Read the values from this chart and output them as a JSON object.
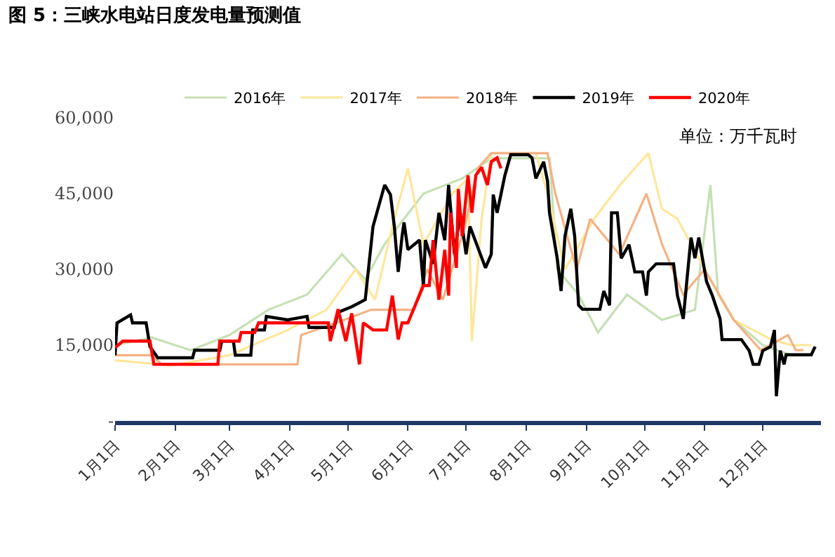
{
  "chart_data": {
    "type": "line",
    "title": "图 5：三峡水电站日度发电量预测值",
    "annotations": [
      "单位：万千瓦时"
    ],
    "xlim": [
      "--01-01",
      "--12-31"
    ],
    "xticks": [
      {
        "value": "--01-01",
        "label": "1月1日"
      },
      {
        "value": "--02-01",
        "label": "2月1日"
      },
      {
        "value": "--03-01",
        "label": "3月1日"
      },
      {
        "value": "--04-01",
        "label": "4月1日"
      },
      {
        "value": "--05-01",
        "label": "5月1日"
      },
      {
        "value": "--06-01",
        "label": "6月1日"
      },
      {
        "value": "--07-01",
        "label": "7月1日"
      },
      {
        "value": "--08-01",
        "label": "8月1日"
      },
      {
        "value": "--09-01",
        "label": "9月1日"
      },
      {
        "value": "--10-01",
        "label": "10月1日"
      },
      {
        "value": "--11-01",
        "label": "11月1日"
      },
      {
        "value": "--12-01",
        "label": "12月1日"
      }
    ],
    "ylim": [
      0,
      60000
    ],
    "yticks": [
      {
        "value": 0,
        "label": "-"
      },
      {
        "value": 15000,
        "label": "15,000"
      },
      {
        "value": 30000,
        "label": "30,000"
      },
      {
        "value": 45000,
        "label": "45,000"
      },
      {
        "value": 60000,
        "label": "60,000"
      }
    ],
    "legend": "top",
    "marker": "none",
    "line_style": "solid",
    "series": [
      {
        "name": "2016年",
        "color": "#c5e0b4",
        "x": [
          "--01-01",
          "--01-20",
          "--02-09",
          "--03-01",
          "--03-21",
          "--04-10",
          "--04-28",
          "--05-10",
          "--05-20",
          "--06-09",
          "--06-29",
          "--07-14",
          "--07-29",
          "--08-13",
          "--08-17",
          "--08-28",
          "--09-07",
          "--09-22",
          "--10-10",
          "--10-27",
          "--11-04",
          "--11-08",
          "--11-16",
          "--12-01",
          "--12-16",
          "--12-26"
        ],
        "values": [
          15000,
          16500,
          14000,
          17000,
          22000,
          25000,
          33000,
          28000,
          35000,
          45000,
          48000,
          52000,
          52000,
          52000,
          30000,
          25000,
          17500,
          25000,
          20000,
          22000,
          46700,
          25000,
          20000,
          15000,
          13000,
          13000
        ]
      },
      {
        "name": "2017年",
        "color": "#ffe699",
        "x": [
          "--01-01",
          "--01-30",
          "--03-01",
          "--03-31",
          "--04-20",
          "--05-05",
          "--05-15",
          "--05-25",
          "--06-01",
          "--06-09",
          "--06-24",
          "--07-02",
          "--07-04",
          "--07-09",
          "--07-14",
          "--08-06",
          "--08-12",
          "--08-21",
          "--09-05",
          "--09-19",
          "--10-03",
          "--10-10",
          "--10-18",
          "--11-01",
          "--11-16",
          "--12-06",
          "--12-16",
          "--12-26"
        ],
        "values": [
          12000,
          11000,
          13000,
          18000,
          22000,
          30000,
          24000,
          40000,
          50000,
          35000,
          45000,
          48000,
          15800,
          40000,
          53000,
          53000,
          45000,
          30000,
          40000,
          47000,
          53000,
          42000,
          40000,
          30000,
          20000,
          16000,
          15000,
          15000
        ]
      },
      {
        "name": "2018年",
        "color": "#f4b183",
        "x": [
          "--01-01",
          "--01-20",
          "--01-25",
          "--04-05",
          "--04-07",
          "--04-25",
          "--05-13",
          "--06-04",
          "--06-11",
          "--06-19",
          "--06-30",
          "--07-07",
          "--07-14",
          "--08-12",
          "--08-16",
          "--08-27",
          "--09-03",
          "--09-18",
          "--10-02",
          "--10-10",
          "--10-21",
          "--11-01",
          "--11-16",
          "--11-30",
          "--12-14",
          "--12-18",
          "--12-22"
        ],
        "values": [
          13000,
          13000,
          11200,
          11200,
          17000,
          19400,
          22000,
          22000,
          30000,
          24000,
          38000,
          50000,
          53000,
          53000,
          45000,
          30000,
          40000,
          33000,
          45000,
          35000,
          25000,
          30000,
          20000,
          14000,
          17000,
          14000,
          14000
        ]
      },
      {
        "name": "2019年",
        "color": "#000000",
        "x": [
          "--01-01",
          "--01-02",
          "--01-09",
          "--01-10",
          "--01-17",
          "--01-19",
          "--01-23",
          "--02-10",
          "--02-11",
          "--02-24",
          "--02-25",
          "--03-03",
          "--03-04",
          "--03-12",
          "--03-13",
          "--03-19",
          "--03-20",
          "--03-31",
          "--04-10",
          "--04-11",
          "--04-24",
          "--04-26",
          "--05-03",
          "--05-10",
          "--05-14",
          "--05-20",
          "--05-23",
          "--05-25",
          "--05-27",
          "--05-29",
          "--05-30",
          "--06-01",
          "--06-07",
          "--06-09",
          "--06-10",
          "--06-14",
          "--06-17",
          "--06-20",
          "--06-22",
          "--06-25",
          "--06-28",
          "--07-01",
          "--07-03",
          "--07-11",
          "--07-14",
          "--07-15",
          "--07-17",
          "--07-21",
          "--07-24",
          "--08-02",
          "--08-04",
          "--08-06",
          "--08-10",
          "--08-12",
          "--08-13",
          "--08-17",
          "--08-19",
          "--08-21",
          "--08-24",
          "--08-26",
          "--08-28",
          "--08-30",
          "--09-08",
          "--09-10",
          "--09-13",
          "--09-14",
          "--09-17",
          "--09-19",
          "--09-23",
          "--09-26",
          "--09-30",
          "--10-02",
          "--10-03",
          "--10-07",
          "--10-16",
          "--10-18",
          "--10-21",
          "--10-23",
          "--10-25",
          "--10-27",
          "--10-29",
          "--11-02",
          "--11-05",
          "--11-09",
          "--11-10",
          "--11-20",
          "--11-24",
          "--11-26",
          "--11-29",
          "--12-01",
          "--12-05",
          "--12-07",
          "--12-08",
          "--12-10",
          "--12-12",
          "--12-13",
          "--12-26",
          "--12-28"
        ],
        "values": [
          13000,
          19400,
          21000,
          19400,
          19400,
          14700,
          12500,
          12500,
          14000,
          14000,
          15800,
          15800,
          13000,
          13000,
          18000,
          18000,
          20700,
          20000,
          20700,
          18500,
          18500,
          21500,
          22600,
          24000,
          38500,
          46700,
          44800,
          38500,
          29500,
          36600,
          39300,
          33900,
          35800,
          26800,
          35800,
          31100,
          41200,
          35800,
          46700,
          33000,
          41200,
          33000,
          38500,
          30300,
          33000,
          44800,
          41200,
          48600,
          52700,
          52700,
          52100,
          48000,
          51300,
          47500,
          41200,
          32200,
          25700,
          36600,
          42000,
          36600,
          22900,
          22100,
          22100,
          25700,
          22900,
          41200,
          41200,
          32200,
          34900,
          29500,
          29500,
          24800,
          29500,
          31100,
          31100,
          24800,
          20200,
          28400,
          36300,
          32200,
          36300,
          27600,
          24800,
          20200,
          16100,
          16100,
          13900,
          11200,
          11200,
          13900,
          14700,
          18000,
          4900,
          13900,
          11200,
          13100,
          13100,
          14700
        ]
      },
      {
        "name": "2020年",
        "color": "#ff0000",
        "x": [
          "--01-01",
          "--01-05",
          "--01-19",
          "--01-21",
          "--02-23",
          "--02-24",
          "--03-06",
          "--03-07",
          "--03-14",
          "--03-16",
          "--04-21",
          "--04-22",
          "--04-26",
          "--04-30",
          "--05-03",
          "--05-07",
          "--05-09",
          "--05-14",
          "--05-21",
          "--05-24",
          "--05-27",
          "--05-29",
          "--06-01",
          "--06-09",
          "--06-12",
          "--06-14",
          "--06-17",
          "--06-20",
          "--06-22",
          "--06-23",
          "--06-26",
          "--06-27",
          "--06-29",
          "--07-02",
          "--07-04",
          "--07-06",
          "--07-09",
          "--07-12",
          "--07-14",
          "--07-17",
          "--07-19"
        ],
        "values": [
          14500,
          15800,
          15800,
          11200,
          11200,
          15800,
          15800,
          17500,
          17500,
          19400,
          19400,
          15800,
          22100,
          15800,
          21300,
          11200,
          19400,
          18000,
          18000,
          24800,
          16100,
          19400,
          19400,
          26800,
          26800,
          35800,
          24000,
          33900,
          24800,
          41200,
          30300,
          45900,
          36600,
          48600,
          41200,
          48600,
          50200,
          46700,
          51300,
          52100,
          50000
        ]
      }
    ]
  }
}
